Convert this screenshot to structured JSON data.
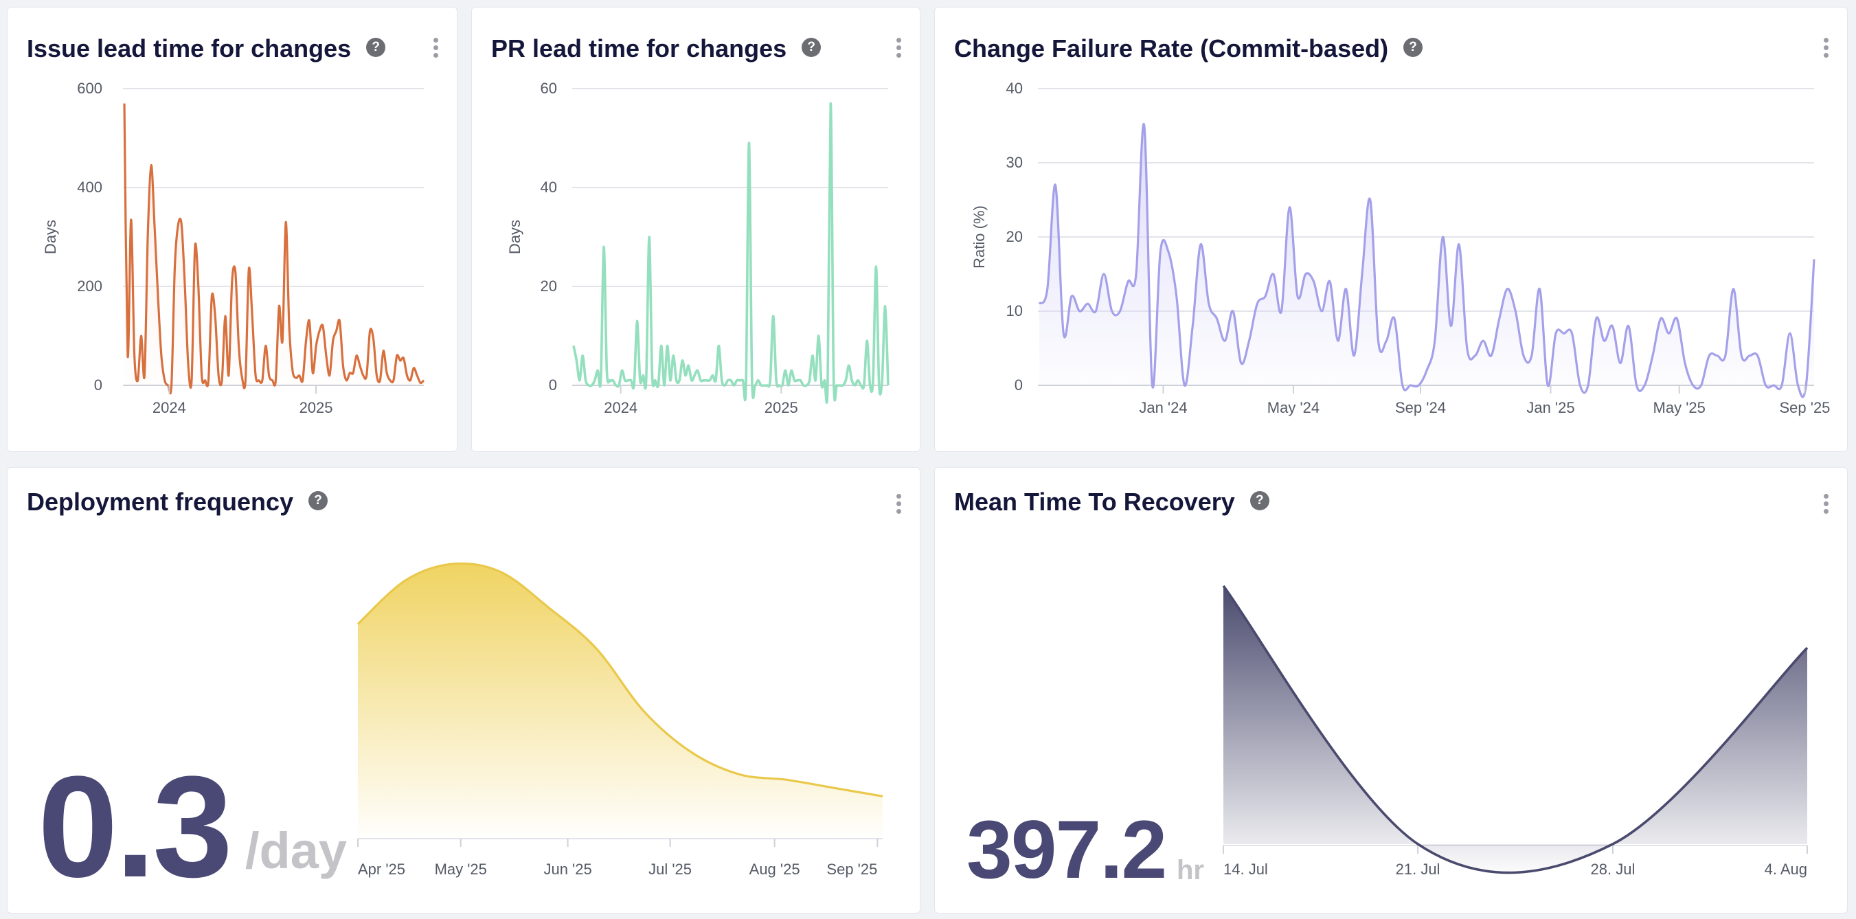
{
  "cards": {
    "issue_lead": {
      "title": "Issue lead time for changes",
      "help": "?"
    },
    "pr_lead": {
      "title": "PR lead time for changes",
      "help": "?"
    },
    "cfr": {
      "title": "Change Failure Rate (Commit-based)",
      "help": "?"
    },
    "deploy": {
      "title": "Deployment frequency",
      "help": "?",
      "value": "0.3",
      "unit": "/day"
    },
    "mttr": {
      "title": "Mean Time To Recovery",
      "help": "?",
      "value": "397.2",
      "unit": "hr"
    }
  },
  "chart_data": [
    {
      "id": "issue_lead",
      "type": "line",
      "ylabel": "Days",
      "ylim": [
        0,
        600
      ],
      "yticks": [
        "0",
        "200",
        "400",
        "600"
      ],
      "xticks": [
        "2024",
        "2025"
      ],
      "xtick_positions": [
        0.15,
        0.64
      ],
      "grid": true,
      "color": "#d8703e",
      "fill": "#f9dccf",
      "values": [
        570,
        60,
        335,
        60,
        10,
        100,
        20,
        310,
        445,
        320,
        180,
        60,
        10,
        0,
        0,
        240,
        325,
        325,
        200,
        40,
        10,
        280,
        200,
        20,
        10,
        10,
        180,
        140,
        20,
        10,
        140,
        20,
        210,
        230,
        80,
        15,
        10,
        235,
        140,
        20,
        10,
        10,
        80,
        20,
        10,
        10,
        160,
        90,
        330,
        120,
        30,
        15,
        20,
        10,
        90,
        130,
        25,
        80,
        110,
        120,
        60,
        20,
        90,
        110,
        130,
        40,
        10,
        25,
        25,
        60,
        40,
        20,
        20,
        110,
        95,
        20,
        10,
        70,
        25,
        10,
        10,
        60,
        50,
        55,
        20,
        10,
        35,
        20,
        5,
        10
      ]
    },
    {
      "id": "pr_lead",
      "type": "line",
      "ylabel": "Days",
      "ylim": [
        0,
        60
      ],
      "yticks": [
        "0",
        "20",
        "40",
        "60"
      ],
      "xticks": [
        "2024",
        "2025"
      ],
      "xtick_positions": [
        0.15,
        0.66
      ],
      "grid": true,
      "color": "#94dfbe",
      "fill": "#e4f7ee",
      "values": [
        8,
        5,
        1,
        6,
        1,
        0,
        0,
        1,
        3,
        1,
        28,
        3,
        1,
        1,
        0,
        0,
        3,
        1,
        1,
        1,
        0,
        13,
        1,
        2,
        1,
        30,
        2,
        1,
        0,
        8,
        0,
        8,
        1,
        6,
        1,
        1,
        5,
        2,
        4,
        1,
        2,
        3,
        1,
        1,
        1,
        1,
        2,
        1,
        8,
        1,
        0,
        1,
        1,
        0,
        1,
        1,
        1,
        0,
        49,
        1,
        0,
        1,
        0,
        0,
        0,
        1,
        14,
        1,
        0,
        0,
        3,
        0,
        3,
        1,
        1,
        1,
        0,
        0,
        1,
        6,
        1,
        10,
        0,
        1,
        0,
        57,
        1,
        0,
        0,
        0,
        1,
        4,
        1,
        0,
        1,
        0,
        0,
        9,
        0,
        1,
        24,
        0,
        1,
        16,
        0
      ]
    },
    {
      "id": "cfr",
      "type": "area",
      "ylabel": "Ratio (%)",
      "ylim": [
        0,
        40
      ],
      "yticks": [
        "0",
        "10",
        "20",
        "30",
        "40"
      ],
      "xticks": [
        "Jan '24",
        "May '24",
        "Sep '24",
        "Jan '25",
        "May '25",
        "Sep '25"
      ],
      "xtick_positions": [
        0.16,
        0.328,
        0.492,
        0.66,
        0.826,
        0.988
      ],
      "grid": true,
      "color": "#a4a0ea",
      "fill": "#d8d6f7",
      "values": [
        11,
        13,
        27,
        7,
        12,
        10,
        11,
        10,
        15,
        10,
        10,
        14,
        15,
        35,
        0,
        18,
        18,
        12,
        0,
        8,
        19,
        11,
        9,
        6,
        10,
        3,
        6,
        11,
        12,
        15,
        10,
        24,
        12,
        15,
        14,
        10,
        14,
        6,
        13,
        4,
        15,
        25,
        6,
        6,
        9,
        0,
        0,
        0,
        2,
        6,
        20,
        8,
        19,
        5,
        4,
        6,
        4,
        9,
        13,
        10,
        4,
        4,
        13,
        0,
        7,
        7,
        7,
        0,
        0,
        9,
        6,
        8,
        3,
        8,
        0,
        0,
        4,
        9,
        7,
        9,
        3,
        0,
        0,
        4,
        4,
        4,
        13,
        4,
        4,
        4,
        0,
        0,
        0,
        7,
        0,
        0,
        17
      ]
    },
    {
      "id": "deploy",
      "type": "area",
      "xticks": [
        "Apr '25",
        "May '25",
        "Jun '25",
        "Jul '25",
        "Aug '25",
        "Sep '25"
      ],
      "xtick_positions": [
        0.0,
        0.196,
        0.4,
        0.595,
        0.794,
        0.99
      ],
      "grid": false,
      "color": "#e9c84a",
      "fill": "#efd15a",
      "values": [
        0.78,
        0.94,
        1.0,
        0.97,
        0.84,
        0.69,
        0.46,
        0.31,
        0.23,
        0.21,
        0.18,
        0.15
      ]
    },
    {
      "id": "mttr",
      "type": "area",
      "xticks": [
        "14. Jul",
        "21. Jul",
        "28. Jul",
        "4. Aug"
      ],
      "xtick_positions": [
        0.0,
        0.333,
        0.667,
        1.0
      ],
      "grid": false,
      "color": "#4a4a6e",
      "fill": "#4a4a6e",
      "values": [
        1.0,
        0.0,
        0.0,
        0.76
      ]
    }
  ]
}
